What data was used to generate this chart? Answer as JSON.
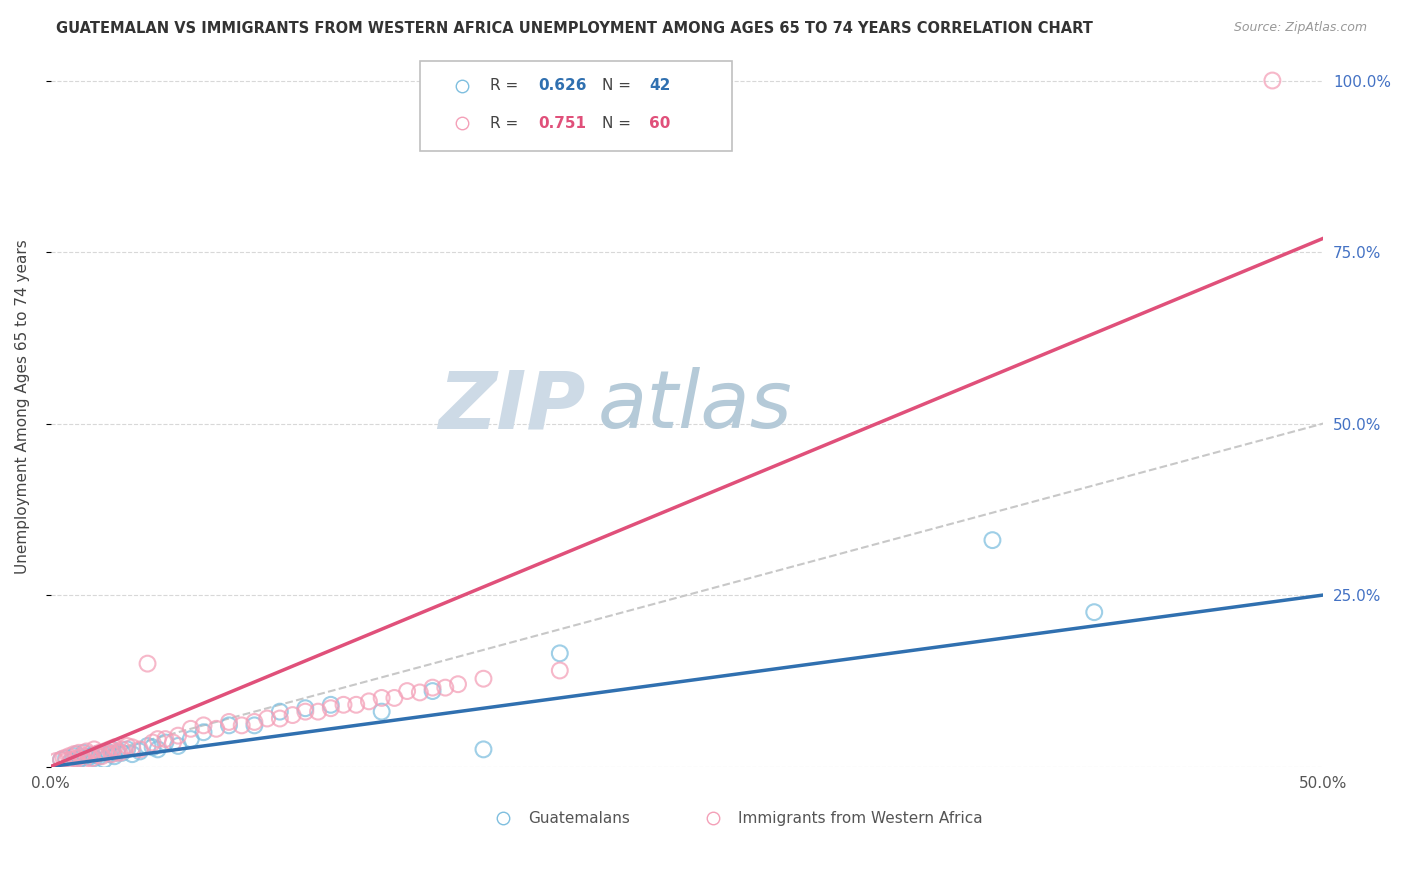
{
  "title": "GUATEMALAN VS IMMIGRANTS FROM WESTERN AFRICA UNEMPLOYMENT AMONG AGES 65 TO 74 YEARS CORRELATION CHART",
  "source": "Source: ZipAtlas.com",
  "ylabel": "Unemployment Among Ages 65 to 74 years",
  "xlim": [
    0.0,
    0.5
  ],
  "ylim": [
    0.0,
    1.05
  ],
  "yticks": [
    0.0,
    0.25,
    0.5,
    0.75,
    1.0
  ],
  "ytick_labels": [
    "",
    "25.0%",
    "50.0%",
    "75.0%",
    "100.0%"
  ],
  "xticks": [
    0.0,
    0.1,
    0.2,
    0.3,
    0.4,
    0.5
  ],
  "xtick_labels": [
    "0.0%",
    "",
    "",
    "",
    "",
    "50.0%"
  ],
  "guatemalan_R": 0.626,
  "guatemalan_N": 42,
  "western_africa_R": 0.751,
  "western_africa_N": 60,
  "blue_scatter_color": "#7fbfdf",
  "pink_scatter_color": "#f4a0b8",
  "blue_line_color": "#3070b0",
  "pink_line_color": "#e0507a",
  "diagonal_color": "#c8c8c8",
  "background_color": "#ffffff",
  "watermark_zip": "ZIP",
  "watermark_atlas": "atlas",
  "watermark_color_zip": "#d0dce8",
  "watermark_color_atlas": "#b8ccd8",
  "guatemalan_x": [
    0.004,
    0.006,
    0.008,
    0.009,
    0.01,
    0.011,
    0.012,
    0.013,
    0.015,
    0.016,
    0.017,
    0.018,
    0.019,
    0.02,
    0.021,
    0.022,
    0.023,
    0.024,
    0.025,
    0.026,
    0.028,
    0.03,
    0.032,
    0.035,
    0.038,
    0.04,
    0.042,
    0.045,
    0.05,
    0.055,
    0.06,
    0.07,
    0.08,
    0.09,
    0.1,
    0.11,
    0.13,
    0.15,
    0.17,
    0.2,
    0.37,
    0.41
  ],
  "guatemalan_y": [
    0.01,
    0.012,
    0.008,
    0.015,
    0.018,
    0.01,
    0.012,
    0.02,
    0.014,
    0.016,
    0.012,
    0.018,
    0.015,
    0.02,
    0.01,
    0.022,
    0.018,
    0.025,
    0.015,
    0.02,
    0.02,
    0.025,
    0.018,
    0.022,
    0.03,
    0.028,
    0.025,
    0.035,
    0.03,
    0.04,
    0.05,
    0.06,
    0.06,
    0.08,
    0.085,
    0.09,
    0.08,
    0.11,
    0.025,
    0.165,
    0.33,
    0.225
  ],
  "western_africa_x": [
    0.002,
    0.004,
    0.005,
    0.006,
    0.007,
    0.008,
    0.009,
    0.01,
    0.011,
    0.012,
    0.013,
    0.014,
    0.015,
    0.016,
    0.017,
    0.018,
    0.019,
    0.02,
    0.021,
    0.022,
    0.023,
    0.024,
    0.025,
    0.026,
    0.027,
    0.028,
    0.03,
    0.032,
    0.035,
    0.038,
    0.04,
    0.042,
    0.045,
    0.048,
    0.05,
    0.055,
    0.06,
    0.065,
    0.07,
    0.075,
    0.08,
    0.085,
    0.09,
    0.095,
    0.1,
    0.105,
    0.11,
    0.115,
    0.12,
    0.125,
    0.13,
    0.135,
    0.14,
    0.145,
    0.15,
    0.155,
    0.16,
    0.17,
    0.2,
    0.48
  ],
  "western_africa_y": [
    0.008,
    0.01,
    0.012,
    0.008,
    0.015,
    0.01,
    0.018,
    0.012,
    0.02,
    0.015,
    0.01,
    0.022,
    0.018,
    0.012,
    0.025,
    0.018,
    0.02,
    0.015,
    0.022,
    0.02,
    0.025,
    0.018,
    0.028,
    0.022,
    0.02,
    0.025,
    0.03,
    0.028,
    0.025,
    0.15,
    0.035,
    0.04,
    0.04,
    0.035,
    0.045,
    0.055,
    0.06,
    0.055,
    0.065,
    0.06,
    0.065,
    0.07,
    0.07,
    0.075,
    0.08,
    0.08,
    0.085,
    0.09,
    0.09,
    0.095,
    0.1,
    0.1,
    0.11,
    0.108,
    0.115,
    0.115,
    0.12,
    0.128,
    0.14,
    1.0
  ],
  "blue_line_x": [
    0.0,
    0.5
  ],
  "blue_line_y": [
    0.0,
    0.25
  ],
  "pink_line_x": [
    0.0,
    0.5
  ],
  "pink_line_y": [
    0.0,
    0.77
  ]
}
